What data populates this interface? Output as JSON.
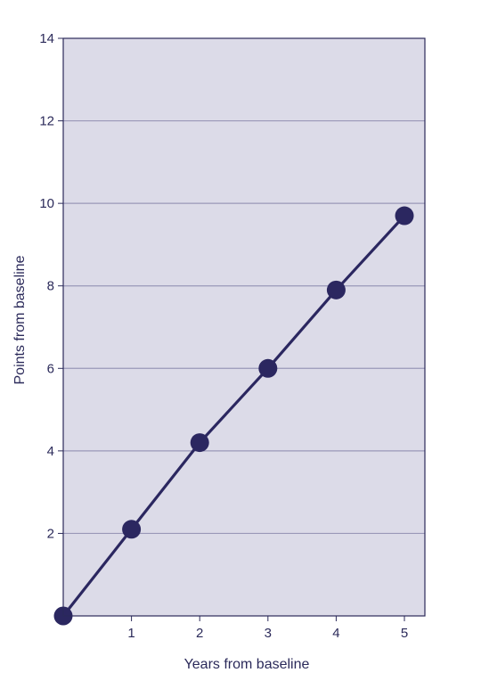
{
  "chart_data": {
    "type": "line",
    "title": "",
    "xlabel": "Years from baseline",
    "ylabel": "Points from baseline",
    "x": [
      0,
      1,
      2,
      3,
      4,
      5
    ],
    "series": [
      {
        "values": [
          0.0,
          2.1,
          4.2,
          6.0,
          7.9,
          9.7
        ]
      }
    ],
    "xticks": [
      1,
      2,
      3,
      4,
      5
    ],
    "yticks": [
      2,
      4,
      6,
      8,
      10,
      12,
      14
    ],
    "xlim": [
      0,
      5.3
    ],
    "ylim": [
      0,
      14
    ],
    "grid": "horizontal",
    "legend": "none",
    "colors": {
      "plot_background": "#dcdbe8",
      "gridline": "#9a98b8",
      "frame": "#2b2a5a",
      "series": "#2b2760",
      "text": "#2b2a5a"
    }
  }
}
